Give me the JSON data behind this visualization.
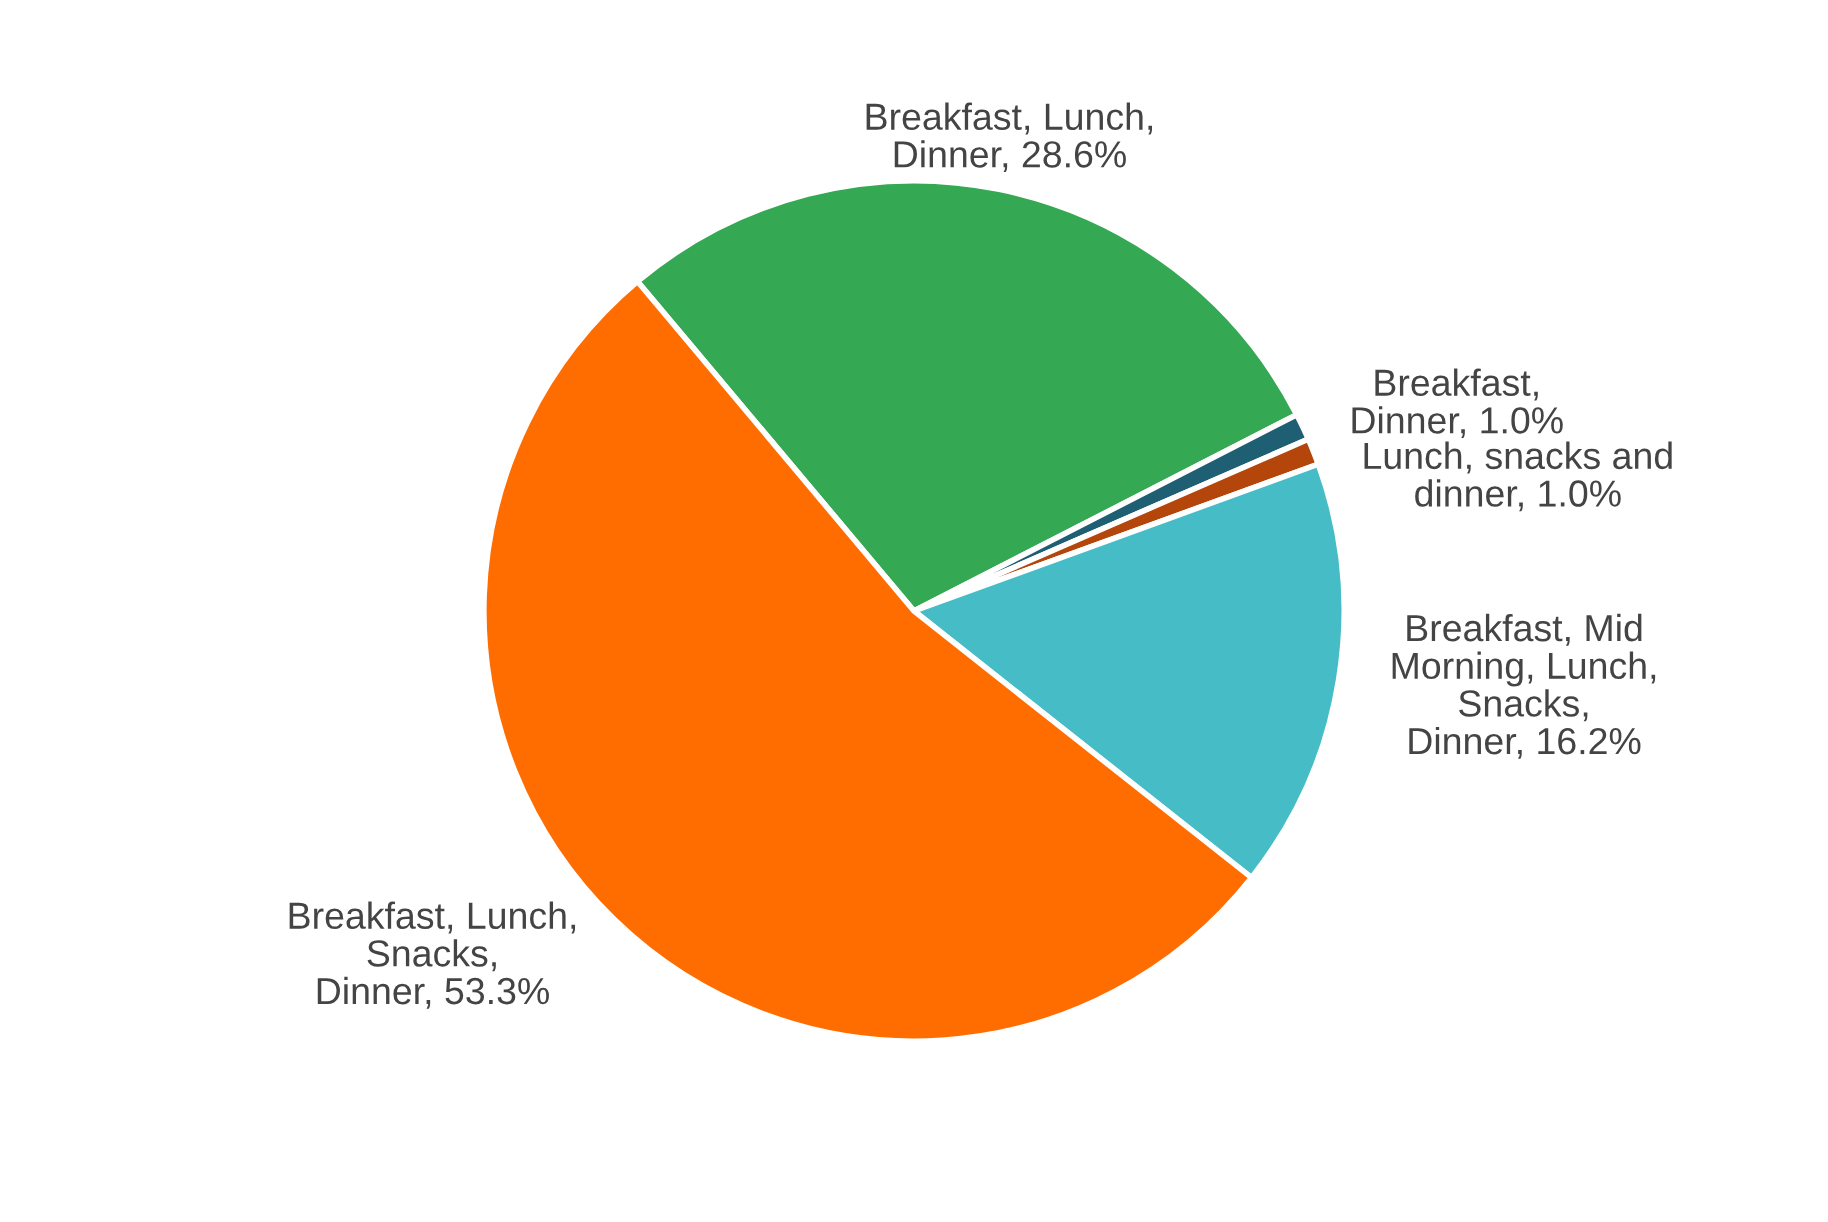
{
  "chart_data": {
    "type": "pie",
    "categories": [
      "Breakfast, Lunch, Dinner",
      "Breakfast, Dinner",
      "Lunch, snacks and dinner",
      "Breakfast, Mid Morning, Lunch, Snacks, Dinner",
      "Breakfast, Lunch, Snacks, Dinner"
    ],
    "value_labels": [
      "28.6%",
      "1.0%",
      "1.0%",
      "16.2%",
      "53.3%"
    ],
    "values": [
      28.6,
      1.0,
      1.0,
      16.2,
      53.3
    ],
    "colors": [
      "#34a853",
      "#1f5f73",
      "#b5460b",
      "#46bdc6",
      "#ff6d01"
    ],
    "legend": false
  }
}
